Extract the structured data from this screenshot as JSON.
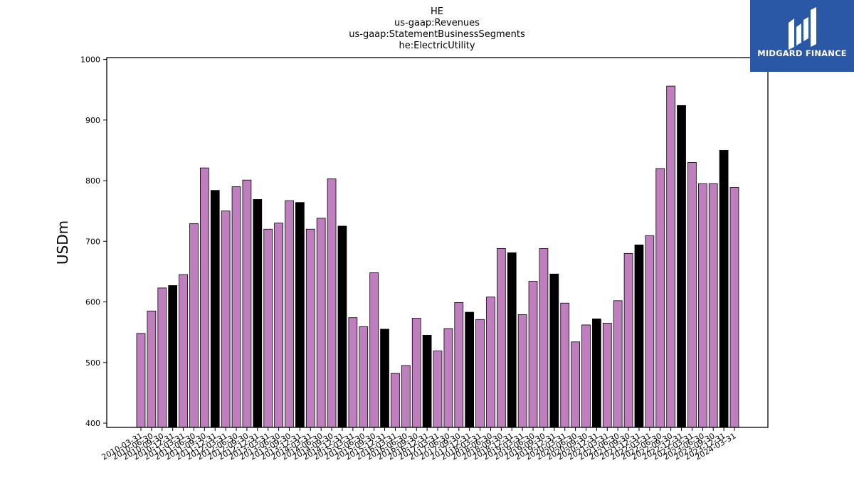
{
  "brand": {
    "name": "MIDGARD FINANCE",
    "logo_icon": "midgard-logo-icon",
    "background_color": "#2b57a7"
  },
  "chart_data": {
    "type": "bar",
    "title_lines": [
      "HE",
      "us-gaap:Revenues",
      "us-gaap:StatementBusinessSegments",
      "he:ElectricUtility"
    ],
    "xlabel": "",
    "ylabel": "USDm",
    "ylim": [
      393,
      1003
    ],
    "yticks": [
      400,
      500,
      600,
      700,
      800,
      900,
      1000
    ],
    "grid": false,
    "colors": {
      "regular": "#bf7fbf",
      "year_end": "#000000",
      "edge": "#000000"
    },
    "categories": [
      "2010-03-31",
      "2010-06-30",
      "2010-09-30",
      "2010-12-31",
      "2011-03-31",
      "2011-06-30",
      "2011-09-30",
      "2011-12-31",
      "2012-03-31",
      "2012-06-30",
      "2012-09-30",
      "2012-12-31",
      "2013-03-31",
      "2013-06-30",
      "2013-09-30",
      "2013-12-31",
      "2014-03-31",
      "2014-06-30",
      "2014-09-30",
      "2014-12-31",
      "2015-03-31",
      "2015-06-30",
      "2015-09-30",
      "2015-12-31",
      "2016-03-31",
      "2016-06-30",
      "2016-09-30",
      "2016-12-31",
      "2017-03-31",
      "2017-06-30",
      "2017-09-30",
      "2017-12-31",
      "2018-03-31",
      "2018-06-30",
      "2018-09-30",
      "2018-12-31",
      "2019-03-31",
      "2019-06-30",
      "2019-09-30",
      "2019-12-31",
      "2020-03-31",
      "2020-06-30",
      "2020-09-30",
      "2020-12-31",
      "2021-03-31",
      "2021-06-30",
      "2021-09-30",
      "2021-12-31",
      "2022-03-31",
      "2022-06-30",
      "2022-09-30",
      "2022-12-31",
      "2023-03-31",
      "2023-06-30",
      "2023-09-30",
      "2023-12-31",
      "2024-03-31"
    ],
    "values": [
      548,
      585,
      623,
      627,
      645,
      729,
      821,
      784,
      750,
      790,
      801,
      769,
      720,
      730,
      767,
      764,
      720,
      738,
      803,
      725,
      574,
      559,
      648,
      555,
      482,
      495,
      573,
      545,
      519,
      556,
      599,
      583,
      571,
      608,
      688,
      681,
      579,
      634,
      688,
      646,
      598,
      534,
      562,
      572,
      565,
      602,
      680,
      694,
      709,
      820,
      956,
      924,
      830,
      795,
      795,
      850,
      789
    ],
    "year_end_flags": [
      0,
      0,
      0,
      1,
      0,
      0,
      0,
      1,
      0,
      0,
      0,
      1,
      0,
      0,
      0,
      1,
      0,
      0,
      0,
      1,
      0,
      0,
      0,
      1,
      0,
      0,
      0,
      1,
      0,
      0,
      0,
      1,
      0,
      0,
      0,
      1,
      0,
      0,
      0,
      1,
      0,
      0,
      0,
      1,
      0,
      0,
      0,
      1,
      0,
      0,
      0,
      1,
      0,
      0,
      0,
      1,
      0
    ]
  }
}
